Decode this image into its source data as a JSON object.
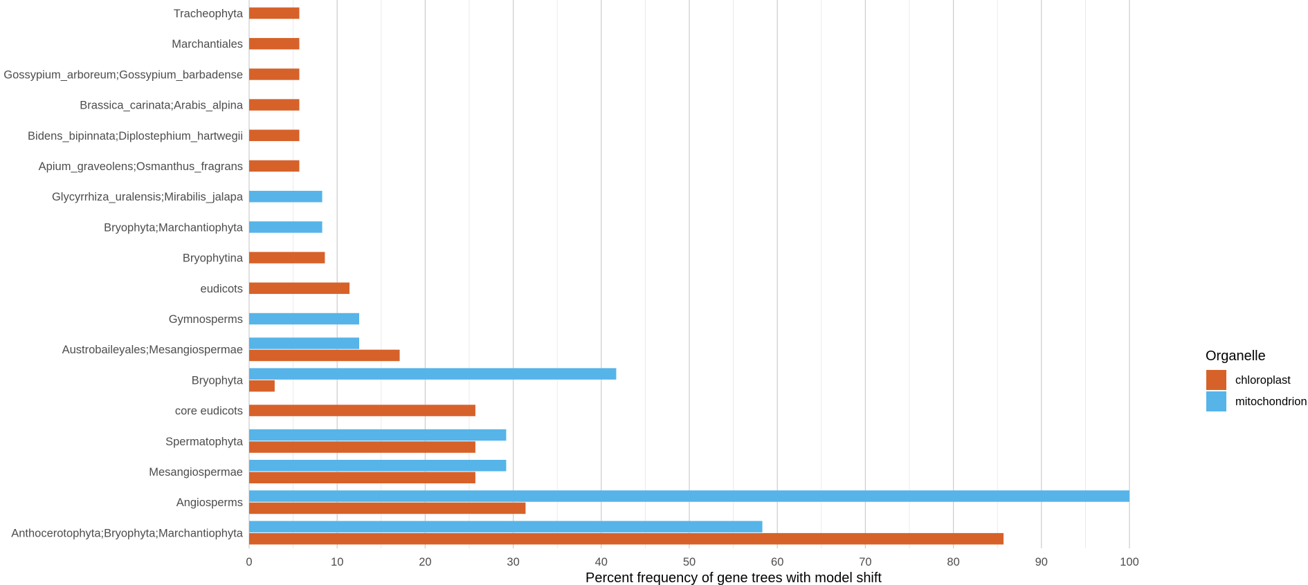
{
  "chart_data": {
    "type": "bar",
    "orientation": "horizontal",
    "xlabel": "Percent frequency of gene trees with model shift",
    "ylabel": "",
    "xlim": [
      0,
      100
    ],
    "xticks": [
      "0",
      "10",
      "20",
      "30",
      "40",
      "50",
      "60",
      "70",
      "80",
      "90",
      "100"
    ],
    "grid": true,
    "legend": {
      "title": "Organelle",
      "position": "right",
      "entries": [
        {
          "name": "chloroplast",
          "color": "#D6622A"
        },
        {
          "name": "mitochondrion",
          "color": "#56B4E9"
        }
      ]
    },
    "categories": [
      "Tracheophyta",
      "Marchantiales",
      "Gossypium_arboreum;Gossypium_barbadense",
      "Brassica_carinata;Arabis_alpina",
      "Bidens_bipinnata;Diplostephium_hartwegii",
      "Apium_graveolens;Osmanthus_fragrans",
      "Glycyrrhiza_uralensis;Mirabilis_jalapa",
      "Bryophyta;Marchantiophyta",
      "Bryophytina",
      "eudicots",
      "Gymnosperms",
      "Austrobaileyales;Mesangiospermae",
      "Bryophyta",
      "core eudicots",
      "Spermatophyta",
      "Mesangiospermae",
      "Angiosperms",
      "Anthocerotophyta;Bryophyta;Marchantiophyta"
    ],
    "series": [
      {
        "name": "chloroplast",
        "color": "#D6622A",
        "values": [
          5.7,
          5.7,
          5.7,
          5.7,
          5.7,
          5.7,
          null,
          null,
          8.6,
          11.4,
          null,
          17.1,
          2.9,
          25.7,
          25.7,
          25.7,
          31.4,
          85.7
        ]
      },
      {
        "name": "mitochondrion",
        "color": "#56B4E9",
        "values": [
          null,
          null,
          null,
          null,
          null,
          null,
          8.3,
          8.3,
          null,
          null,
          12.5,
          12.5,
          41.7,
          null,
          29.2,
          29.2,
          100,
          58.3
        ]
      }
    ]
  }
}
